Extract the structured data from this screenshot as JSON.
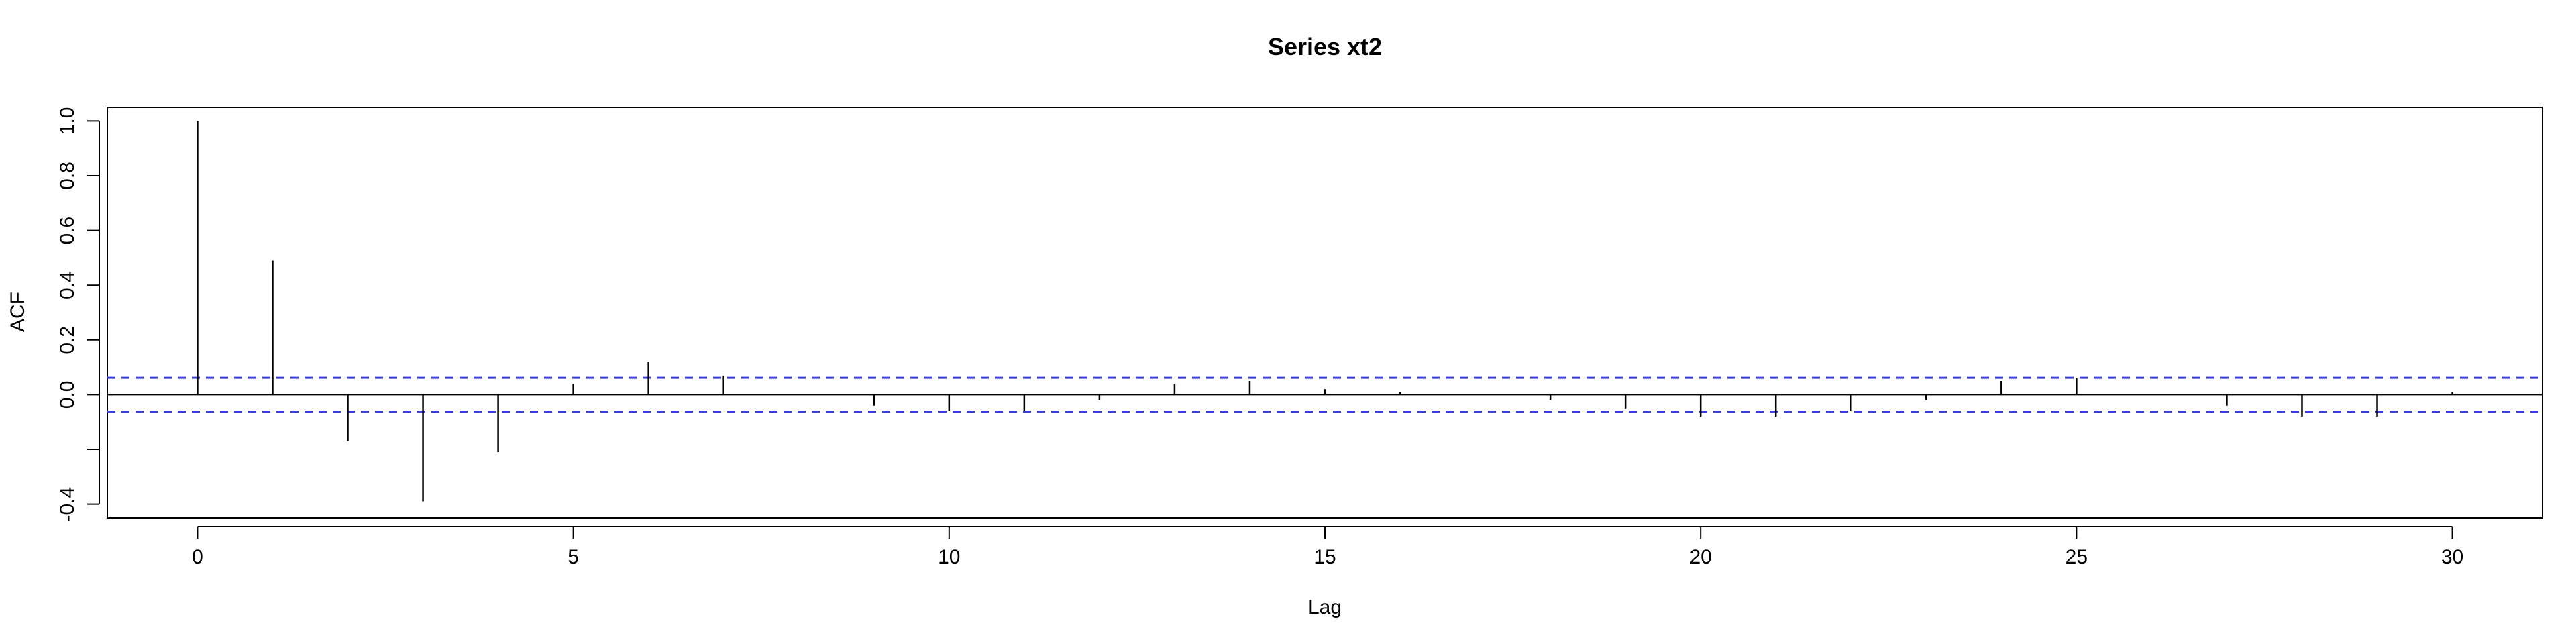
{
  "chart_data": {
    "type": "bar",
    "title": "Series  xt2",
    "xlabel": "Lag",
    "ylabel": "ACF",
    "xlim": [
      -1.2,
      31.2
    ],
    "ylim": [
      -0.45,
      1.05
    ],
    "x_ticks": [
      0,
      5,
      10,
      15,
      20,
      25,
      30
    ],
    "y_ticks": [
      -0.4,
      -0.2,
      0.0,
      0.2,
      0.4,
      0.6,
      0.8,
      1.0
    ],
    "y_tick_labels": [
      "-0.4",
      "",
      "0.0",
      "0.2",
      "0.4",
      "0.6",
      "0.8",
      "1.0"
    ],
    "confidence_bound": 0.062,
    "confidence_color": "#3a3fd9",
    "bar_color": "#000000",
    "x": [
      0,
      1,
      2,
      3,
      4,
      5,
      6,
      7,
      8,
      9,
      10,
      11,
      12,
      13,
      14,
      15,
      16,
      17,
      18,
      19,
      20,
      21,
      22,
      23,
      24,
      25,
      26,
      27,
      28,
      29,
      30
    ],
    "values": [
      1.0,
      0.49,
      -0.17,
      -0.39,
      -0.21,
      0.04,
      0.12,
      0.07,
      0.0,
      -0.04,
      -0.06,
      -0.06,
      -0.02,
      0.04,
      0.05,
      0.02,
      0.01,
      0.0,
      -0.02,
      -0.05,
      -0.08,
      -0.08,
      -0.06,
      -0.02,
      0.05,
      0.06,
      0.0,
      -0.04,
      -0.08,
      -0.08,
      0.01
    ],
    "grid": false,
    "legend": "none"
  }
}
